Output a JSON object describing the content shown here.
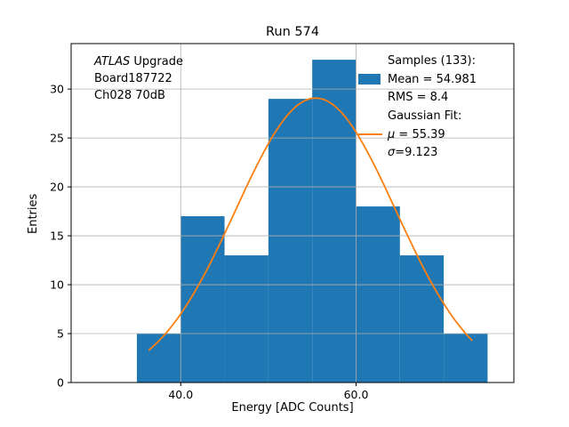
{
  "figure": {
    "title": "Run 574",
    "xlabel": "Energy [ADC Counts]",
    "ylabel": "Entries",
    "annotation": {
      "atlas": "ATLAS",
      "upgrade": " Upgrade",
      "board": "Board187722",
      "channel": "Ch028 70dB"
    },
    "legend": {
      "samples_header": "Samples (133):",
      "mean_label": "Mean = 54.981",
      "rms_label": "RMS = 8.4",
      "fit_header": "Gaussian Fit:",
      "mu_symbol": "μ",
      "mu_value": " = 55.39",
      "sigma_symbol": "σ",
      "sigma_value": "=9.123"
    }
  },
  "chart_data": {
    "type": "bar",
    "subtype": "histogram",
    "title": "Run 574",
    "xlabel": "Energy [ADC Counts]",
    "ylabel": "Entries",
    "bin_edges": [
      35,
      40,
      45,
      50,
      55,
      60,
      65,
      70,
      75
    ],
    "counts": [
      5,
      17,
      13,
      29,
      33,
      18,
      13,
      5
    ],
    "xticks": [
      40,
      60
    ],
    "xtick_labels": [
      "40.0",
      "60.0"
    ],
    "yticks": [
      0,
      5,
      10,
      15,
      20,
      25,
      30
    ],
    "ytick_labels": [
      "0",
      "5",
      "10",
      "15",
      "20",
      "25",
      "30"
    ],
    "xlim": [
      27.5,
      78
    ],
    "ylim": [
      0,
      34.65
    ],
    "grid": true,
    "grid_color": "#b0b0b0",
    "bar_color": "#1f77b4",
    "stats": {
      "samples": 133,
      "mean": 54.981,
      "rms": 8.4
    },
    "fit": {
      "type": "gaussian",
      "mu": 55.39,
      "sigma": 9.123,
      "amplitude": 29.08,
      "color": "#ff7f0e",
      "x_range": [
        36.4,
        73.2
      ]
    },
    "legend_position": "upper right",
    "annotation_position": "upper left"
  }
}
